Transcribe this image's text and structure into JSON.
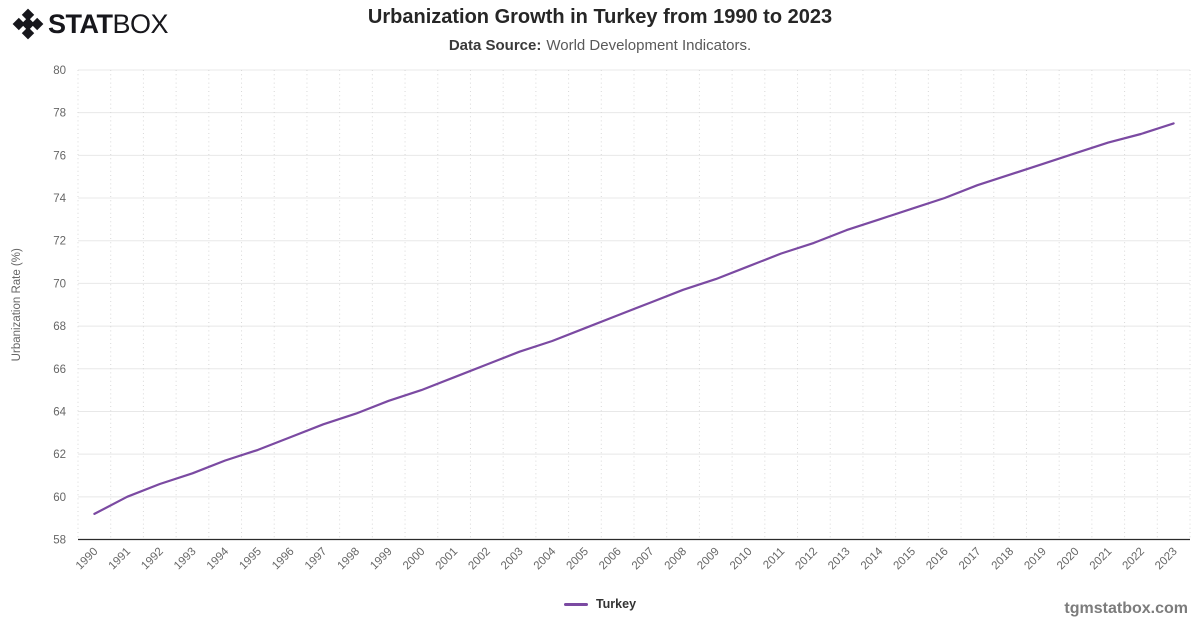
{
  "brand": {
    "stat": "STAT",
    "box": "BOX"
  },
  "header": {
    "title": "Urbanization Growth in Turkey from 1990 to 2023",
    "source_label": "Data Source:",
    "source_text": "World Development Indicators."
  },
  "legend": {
    "series_label": "Turkey"
  },
  "watermark": "tgmstatbox.com",
  "chart_data": {
    "type": "line",
    "title": "Urbanization Growth in Turkey from 1990 to 2023",
    "xlabel": "",
    "ylabel": "Urbanization Rate (%)",
    "ylim": [
      58,
      80
    ],
    "ytick_step": 2,
    "grid": true,
    "legend_position": "bottom",
    "categories": [
      "1990",
      "1991",
      "1992",
      "1993",
      "1994",
      "1995",
      "1996",
      "1997",
      "1998",
      "1999",
      "2000",
      "2001",
      "2002",
      "2003",
      "2004",
      "2005",
      "2006",
      "2007",
      "2008",
      "2009",
      "2010",
      "2011",
      "2012",
      "2013",
      "2014",
      "2015",
      "2016",
      "2017",
      "2018",
      "2019",
      "2020",
      "2021",
      "2022",
      "2023"
    ],
    "series": [
      {
        "name": "Turkey",
        "color": "#7b4aa2",
        "values": [
          59.2,
          60.0,
          60.6,
          61.1,
          61.7,
          62.2,
          62.8,
          63.4,
          63.9,
          64.5,
          65.0,
          65.6,
          66.2,
          66.8,
          67.3,
          67.9,
          68.5,
          69.1,
          69.7,
          70.2,
          70.8,
          71.4,
          71.9,
          72.5,
          73.0,
          73.5,
          74.0,
          74.6,
          75.1,
          75.6,
          76.1,
          76.6,
          77.0,
          77.5
        ]
      }
    ],
    "colors": {
      "grid_horizontal": "#e8e8e8",
      "grid_vertical": "#d8d8d8",
      "axis_line": "#2a2a2a",
      "tick_text": "#666666"
    }
  }
}
